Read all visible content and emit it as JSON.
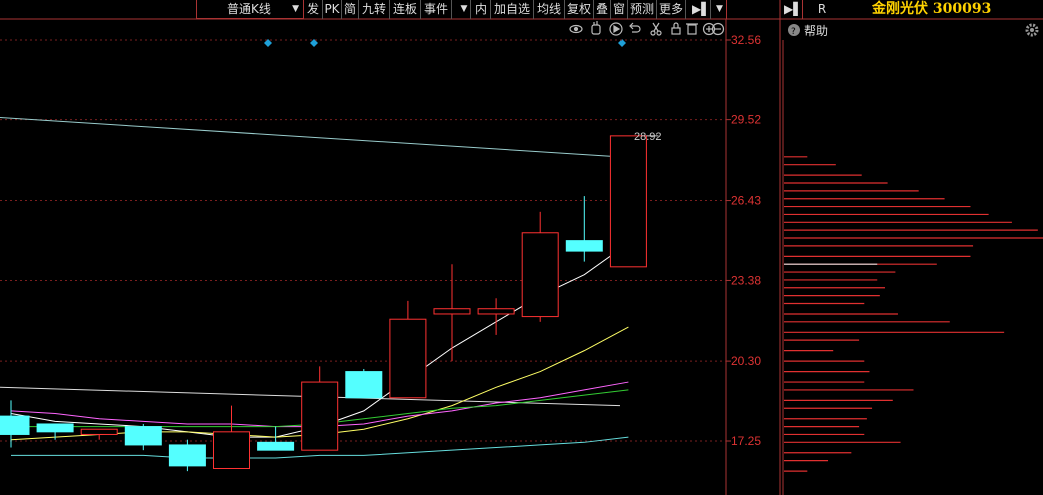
{
  "toolbar": {
    "period_label": "普通K线",
    "buttons": [
      "发",
      "PK",
      "简",
      "九转",
      "连板",
      "事件",
      "内",
      "加自选",
      "均线",
      "复权",
      "叠",
      "窗",
      "预测",
      "更多"
    ]
  },
  "right_panel": {
    "r_label": "R",
    "stock_name_code": "金刚光伏 300093",
    "help_label": "帮助"
  },
  "chart_data": {
    "type": "candlestick",
    "y_ticks": [
      "32.56",
      "29.52",
      "26.43",
      "23.38",
      "20.30",
      "17.25"
    ],
    "ylim": [
      15.7,
      33.0
    ],
    "high_marker": "28.92",
    "candles": [
      {
        "o": 18.2,
        "h": 18.8,
        "l": 17.0,
        "c": 17.5
      },
      {
        "o": 17.9,
        "h": 17.9,
        "l": 17.3,
        "c": 17.6
      },
      {
        "o": 17.5,
        "h": 17.7,
        "l": 17.3,
        "c": 17.7
      },
      {
        "o": 17.8,
        "h": 17.9,
        "l": 16.9,
        "c": 17.1
      },
      {
        "o": 17.1,
        "h": 17.3,
        "l": 16.1,
        "c": 16.3
      },
      {
        "o": 16.2,
        "h": 18.6,
        "l": 16.2,
        "c": 17.6
      },
      {
        "o": 17.2,
        "h": 17.8,
        "l": 16.9,
        "c": 16.9
      },
      {
        "o": 16.9,
        "h": 20.1,
        "l": 16.9,
        "c": 19.5
      },
      {
        "o": 19.9,
        "h": 20.0,
        "l": 18.9,
        "c": 18.9
      },
      {
        "o": 18.9,
        "h": 22.6,
        "l": 18.9,
        "c": 21.9
      },
      {
        "o": 22.1,
        "h": 24.0,
        "l": 20.3,
        "c": 22.3
      },
      {
        "o": 22.1,
        "h": 22.7,
        "l": 21.3,
        "c": 22.3
      },
      {
        "o": 22.0,
        "h": 26.0,
        "l": 21.8,
        "c": 25.2
      },
      {
        "o": 24.9,
        "h": 26.6,
        "l": 24.1,
        "c": 24.5
      },
      {
        "o": 23.9,
        "h": 28.9,
        "l": 23.9,
        "c": 28.9
      }
    ],
    "ma_lines": [
      {
        "color": "#ffffff",
        "values": [
          18.3,
          18.0,
          17.9,
          17.8,
          17.6,
          17.4,
          17.4,
          17.8,
          18.4,
          19.6,
          20.8,
          21.8,
          22.8,
          23.6,
          24.8
        ]
      },
      {
        "color": "#ffff66",
        "values": [
          17.3,
          17.4,
          17.5,
          17.6,
          17.6,
          17.5,
          17.4,
          17.5,
          17.7,
          18.1,
          18.6,
          19.3,
          19.9,
          20.7,
          21.6
        ]
      },
      {
        "color": "#ff66ff",
        "values": [
          18.4,
          18.3,
          18.1,
          18.0,
          17.9,
          17.9,
          17.8,
          17.8,
          17.9,
          18.2,
          18.4,
          18.7,
          18.9,
          19.2,
          19.5
        ]
      },
      {
        "color": "#33cc33",
        "values": [
          17.8,
          17.8,
          17.8,
          17.8,
          17.8,
          17.8,
          17.8,
          17.9,
          18.1,
          18.3,
          18.5,
          18.6,
          18.8,
          19.0,
          19.2
        ]
      },
      {
        "color": "#66dddd",
        "values": [
          16.7,
          16.7,
          16.7,
          16.7,
          16.6,
          16.6,
          16.6,
          16.7,
          16.7,
          16.8,
          16.9,
          17.0,
          17.1,
          17.2,
          17.4
        ]
      }
    ],
    "long_lines": [
      {
        "color": "#99cccc",
        "from": 29.6,
        "to": 28.1
      },
      {
        "color": "#dddddd",
        "from": 19.3,
        "to": 18.6
      }
    ],
    "volume_profile": [
      {
        "price": 28.1,
        "len": 0.09
      },
      {
        "price": 27.8,
        "len": 0.2
      },
      {
        "price": 27.4,
        "len": 0.3
      },
      {
        "price": 27.1,
        "len": 0.4
      },
      {
        "price": 26.8,
        "len": 0.52
      },
      {
        "price": 26.5,
        "len": 0.62
      },
      {
        "price": 26.2,
        "len": 0.72
      },
      {
        "price": 25.9,
        "len": 0.79
      },
      {
        "price": 25.6,
        "len": 0.88
      },
      {
        "price": 25.3,
        "len": 0.98
      },
      {
        "price": 25.0,
        "len": 1.0
      },
      {
        "price": 24.7,
        "len": 0.73
      },
      {
        "price": 24.3,
        "len": 0.72
      },
      {
        "price": 24.0,
        "len": 0.59
      },
      {
        "price": 23.7,
        "len": 0.43
      },
      {
        "price": 23.4,
        "len": 0.36
      },
      {
        "price": 23.1,
        "len": 0.39
      },
      {
        "price": 22.8,
        "len": 0.37
      },
      {
        "price": 22.5,
        "len": 0.31
      },
      {
        "price": 22.1,
        "len": 0.44
      },
      {
        "price": 21.8,
        "len": 0.64
      },
      {
        "price": 21.4,
        "len": 0.85
      },
      {
        "price": 21.1,
        "len": 0.29
      },
      {
        "price": 20.7,
        "len": 0.19
      },
      {
        "price": 20.3,
        "len": 0.31
      },
      {
        "price": 19.9,
        "len": 0.33
      },
      {
        "price": 19.5,
        "len": 0.31
      },
      {
        "price": 19.2,
        "len": 0.5
      },
      {
        "price": 18.8,
        "len": 0.42
      },
      {
        "price": 18.5,
        "len": 0.34
      },
      {
        "price": 18.1,
        "len": 0.32
      },
      {
        "price": 17.8,
        "len": 0.29
      },
      {
        "price": 17.5,
        "len": 0.31
      },
      {
        "price": 17.2,
        "len": 0.45
      },
      {
        "price": 16.8,
        "len": 0.26
      },
      {
        "price": 16.5,
        "len": 0.17
      },
      {
        "price": 16.1,
        "len": 0.09
      }
    ],
    "current_price": 24.0
  }
}
